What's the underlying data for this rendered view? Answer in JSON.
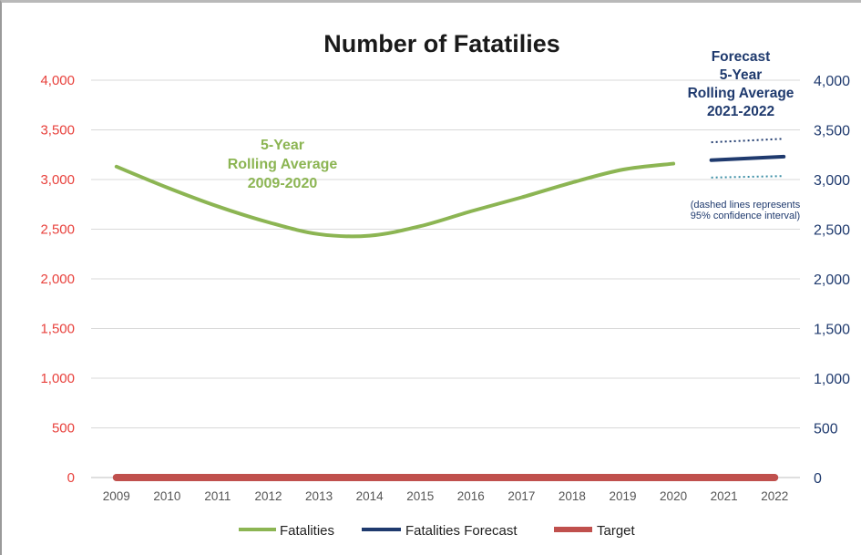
{
  "chart_data": {
    "type": "line",
    "title": "Number of Fatatilies",
    "x": [
      "2009",
      "2010",
      "2011",
      "2012",
      "2013",
      "2014",
      "2015",
      "2016",
      "2017",
      "2018",
      "2019",
      "2020",
      "2021",
      "2022"
    ],
    "ylim": [
      0,
      4000
    ],
    "yticks": [
      0,
      500,
      1000,
      1500,
      2000,
      2500,
      3000,
      3500,
      4000
    ],
    "ytick_labels": [
      "0",
      "500",
      "1,000",
      "1,500",
      "2,000",
      "2,500",
      "3,000",
      "3,500",
      "4,000"
    ],
    "y2lim": [
      0,
      4000
    ],
    "y2tick_labels": [
      "0",
      "500",
      "1,000",
      "1,500",
      "2,000",
      "2,500",
      "3,000",
      "3,500",
      "4,000"
    ],
    "grid": true,
    "legend_position": "bottom",
    "series": [
      {
        "name": "Fatalities",
        "color": "#8cb553",
        "x": [
          "2009",
          "2010",
          "2011",
          "2012",
          "2013",
          "2014",
          "2015",
          "2016",
          "2017",
          "2018",
          "2019",
          "2020"
        ],
        "values": [
          3130,
          2920,
          2730,
          2570,
          2450,
          2435,
          2530,
          2680,
          2820,
          2970,
          3100,
          3160
        ]
      },
      {
        "name": "Fatalities Forecast",
        "color": "#1f3a6e",
        "x": [
          "2021",
          "2022"
        ],
        "values": [
          3195,
          3230
        ],
        "upper": [
          3375,
          3410
        ],
        "lower": [
          3020,
          3035
        ]
      },
      {
        "name": "Target",
        "color": "#c0504d",
        "x": [
          "2009",
          "2010",
          "2011",
          "2012",
          "2013",
          "2014",
          "2015",
          "2016",
          "2017",
          "2018",
          "2019",
          "2020",
          "2021",
          "2022"
        ],
        "values": [
          0,
          0,
          0,
          0,
          0,
          0,
          0,
          0,
          0,
          0,
          0,
          0,
          0,
          0
        ]
      }
    ],
    "annotations": {
      "history": [
        "5-Year",
        "Rolling Average",
        "2009-2020"
      ],
      "forecast": [
        "Forecast",
        "5-Year",
        "Rolling Average",
        "2021-2022"
      ],
      "note": [
        "(dashed lines  represents",
        "95% confidence interval)"
      ]
    }
  }
}
